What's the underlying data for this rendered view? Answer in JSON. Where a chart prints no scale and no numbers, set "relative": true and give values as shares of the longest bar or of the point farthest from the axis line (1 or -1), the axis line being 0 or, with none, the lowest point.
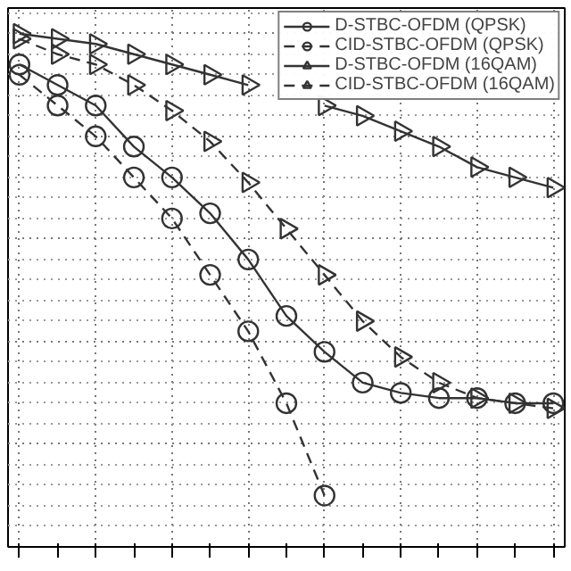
{
  "chart_data": {
    "type": "line",
    "relative": true,
    "grid": true,
    "legend": "top right",
    "categories": [
      null,
      null,
      null,
      null,
      null,
      null,
      null,
      null,
      null,
      null,
      null,
      null,
      null,
      null,
      null
    ],
    "series": [
      {
        "name": "D-STBC-OFDM (QPSK)",
        "color": "#333333",
        "marker": "circle",
        "line_style": "solid",
        "values": [
          0.94,
          0.9,
          0.86,
          0.78,
          0.72,
          0.65,
          0.56,
          0.45,
          0.38,
          0.32,
          0.3,
          0.29,
          0.29,
          0.28,
          0.28
        ]
      },
      {
        "name": "CID-STBC-OFDM (QPSK)",
        "color": "#333333",
        "marker": "circle",
        "line_style": "dashed",
        "values": [
          0.92,
          0.86,
          0.8,
          0.72,
          0.64,
          0.53,
          0.42,
          0.28,
          0.1,
          null,
          null,
          null,
          null,
          null,
          null
        ]
      },
      {
        "name": "D-STBC-OFDM (16QAM)",
        "color": "#333333",
        "marker": "triangle",
        "line_style": "solid",
        "values": [
          1.0,
          0.99,
          0.98,
          0.96,
          0.94,
          0.92,
          0.9,
          null,
          0.86,
          0.84,
          0.81,
          0.78,
          0.74,
          0.72,
          0.7
        ]
      },
      {
        "name": "CID-STBC-OFDM (16QAM)",
        "color": "#333333",
        "marker": "triangle",
        "line_style": "dashed",
        "values": [
          0.99,
          0.96,
          0.94,
          0.9,
          0.85,
          0.79,
          0.71,
          0.62,
          0.53,
          0.44,
          0.37,
          0.32,
          0.29,
          0.28,
          0.27
        ]
      }
    ]
  }
}
